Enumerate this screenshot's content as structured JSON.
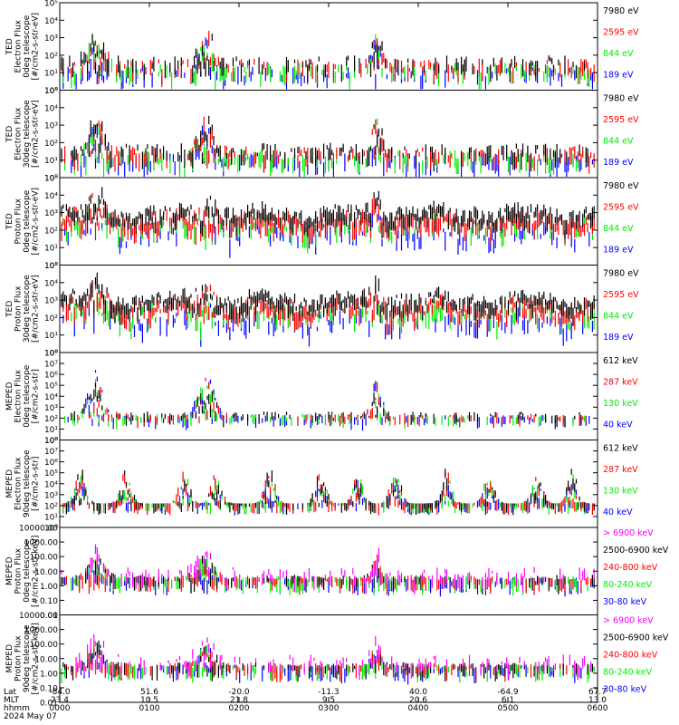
{
  "colors": {
    "black": "#000000",
    "red": "#ff0000",
    "green": "#00ee00",
    "blue": "#0000ff",
    "magenta": "#ff00ff"
  },
  "footer": {
    "rows": [
      "Lat",
      "MLT",
      "hhmm",
      "2024 May 07"
    ],
    "ticks": [
      {
        "lat": "-84.0",
        "mlt": "23.4",
        "hhmm": "0000"
      },
      {
        "lat": "51.6",
        "mlt": "10.5",
        "hhmm": "0100"
      },
      {
        "lat": "-20.0",
        "mlt": "21.8",
        "hhmm": "0200"
      },
      {
        "lat": "-11.3",
        "mlt": "9.5",
        "hhmm": "0300"
      },
      {
        "lat": "40.0",
        "mlt": "20.6",
        "hhmm": "0400"
      },
      {
        "lat": "-64.9",
        "mlt": "6.1",
        "hhmm": "0500"
      },
      {
        "lat": "67.7",
        "mlt": "13.0",
        "hhmm": "0600"
      }
    ]
  },
  "chart_data": [
    {
      "type": "scatter",
      "ylabel_lines": [
        "TED",
        "Electron Flux",
        "0deg telescope",
        "[#/cm2-s-str-eV]"
      ],
      "yscale": "log",
      "ylim_exp": [
        0,
        5
      ],
      "ytick_labels": [
        "10⁰",
        "10¹",
        "10²",
        "10³",
        "10⁴",
        "10⁵"
      ],
      "legend": [
        {
          "label": "7980 eV",
          "color": "black"
        },
        {
          "label": "2595 eV",
          "color": "red"
        },
        {
          "label": "844 eV",
          "color": "green"
        },
        {
          "label": "189 eV",
          "color": "blue"
        }
      ]
    },
    {
      "type": "scatter",
      "ylabel_lines": [
        "TED",
        "Electron Flux",
        "30deg telescope",
        "[#/cm2-s-str-eV]"
      ],
      "yscale": "log",
      "ylim_exp": [
        0,
        5
      ],
      "ytick_labels": [
        "10⁰",
        "10¹",
        "10²",
        "10³",
        "10⁴",
        "10⁵"
      ],
      "legend": [
        {
          "label": "7980 eV",
          "color": "black"
        },
        {
          "label": "2595 eV",
          "color": "red"
        },
        {
          "label": "844 eV",
          "color": "green"
        },
        {
          "label": "189 eV",
          "color": "blue"
        }
      ]
    },
    {
      "type": "scatter",
      "ylabel_lines": [
        "TED",
        "Proton Flux",
        "0deg telescope",
        "[#/cm2-s-str-eV]"
      ],
      "yscale": "log",
      "ylim_exp": [
        0,
        5
      ],
      "ytick_labels": [
        "10⁰",
        "10¹",
        "10²",
        "10³",
        "10⁴",
        "10⁵"
      ],
      "legend": [
        {
          "label": "7980 eV",
          "color": "black"
        },
        {
          "label": "2595 eV",
          "color": "red"
        },
        {
          "label": "844 eV",
          "color": "green"
        },
        {
          "label": "189 eV",
          "color": "blue"
        }
      ]
    },
    {
      "type": "scatter",
      "ylabel_lines": [
        "TED",
        "Proton Flux",
        "30deg telescope",
        "[#/cm2-s-str-eV]"
      ],
      "yscale": "log",
      "ylim_exp": [
        0,
        5
      ],
      "ytick_labels": [
        "10⁰",
        "10¹",
        "10²",
        "10³",
        "10⁴",
        "10⁵"
      ],
      "legend": [
        {
          "label": "7980 eV",
          "color": "black"
        },
        {
          "label": "2595 eV",
          "color": "red"
        },
        {
          "label": "844 eV",
          "color": "green"
        },
        {
          "label": "189 eV",
          "color": "blue"
        }
      ]
    },
    {
      "type": "scatter",
      "ylabel_lines": [
        "MEPED",
        "Electron Flux",
        "0deg telescope",
        "[#/cm2-s-str]"
      ],
      "yscale": "log",
      "ylim_exp": [
        0,
        8
      ],
      "ytick_labels": [
        "10⁰",
        "10¹",
        "10²",
        "10³",
        "10⁴",
        "10⁵",
        "10⁶",
        "10⁷",
        "10⁸"
      ],
      "legend": [
        {
          "label": "612 keV",
          "color": "black"
        },
        {
          "label": "287 keV",
          "color": "red"
        },
        {
          "label": "130 keV",
          "color": "green"
        },
        {
          "label": "40 keV",
          "color": "blue"
        }
      ]
    },
    {
      "type": "scatter",
      "ylabel_lines": [
        "MEPED",
        "Electron Flux",
        "90deg telescope",
        "[#/cm2-s-str]"
      ],
      "yscale": "log",
      "ylim_exp": [
        0,
        8
      ],
      "ytick_labels": [
        "10⁰",
        "10¹",
        "10²",
        "10³",
        "10⁴",
        "10⁵",
        "10⁶",
        "10⁷",
        "10⁸"
      ],
      "legend": [
        {
          "label": "612 keV",
          "color": "black"
        },
        {
          "label": "287 keV",
          "color": "red"
        },
        {
          "label": "130 keV",
          "color": "green"
        },
        {
          "label": "40 keV",
          "color": "blue"
        }
      ]
    },
    {
      "type": "scatter",
      "ylabel_lines": [
        "MEPED",
        "Proton Flux",
        "0deg telescope",
        "[#/cm2-s-str-keV]"
      ],
      "yscale": "log",
      "ylim_exp": [
        -2,
        4
      ],
      "ytick_labels": [
        "0.01",
        "0.10",
        "1.00",
        "10.00",
        "100.00",
        "1000.00",
        "10000.00"
      ],
      "legend": [
        {
          "label": "> 6900 keV",
          "color": "magenta"
        },
        {
          "label": "2500-6900 keV",
          "color": "black"
        },
        {
          "label": "240-800 keV",
          "color": "red"
        },
        {
          "label": "80-240 keV",
          "color": "green"
        },
        {
          "label": "30-80 keV",
          "color": "blue"
        }
      ]
    },
    {
      "type": "scatter",
      "ylabel_lines": [
        "MEPED",
        "Proton Flux",
        "90deg telescope",
        "[#/cm2-s-str-keV]"
      ],
      "yscale": "log",
      "ylim_exp": [
        -2,
        4
      ],
      "ytick_labels": [
        "0.01",
        "0.10",
        "1.00",
        "10.00",
        "100.00",
        "1000.00",
        "10000.00"
      ],
      "legend": [
        {
          "label": "> 6900 keV",
          "color": "magenta"
        },
        {
          "label": "2500-6900 keV",
          "color": "black"
        },
        {
          "label": "240-800 keV",
          "color": "red"
        },
        {
          "label": "80-240 keV",
          "color": "green"
        },
        {
          "label": "30-80 keV",
          "color": "blue"
        }
      ]
    }
  ]
}
